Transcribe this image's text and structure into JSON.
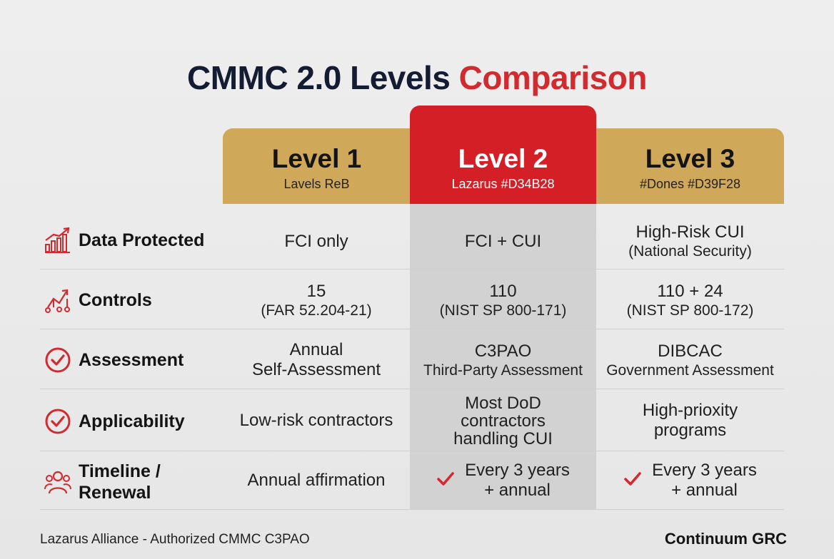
{
  "title": {
    "part1": "CMMC 2.0 Levels",
    "part2": "Comparison"
  },
  "colors": {
    "gold": "#d0a85a",
    "red": "#d31f25",
    "navy": "#141c33"
  },
  "levels": [
    {
      "title": "Level 1",
      "subtitle": "Lavels ReB"
    },
    {
      "title": "Level 2",
      "subtitle": "Lazarus #D34B28"
    },
    {
      "title": "Level 3",
      "subtitle": "#Dones #D39F28"
    }
  ],
  "rows": [
    {
      "label": "Data Protected",
      "icon": "growth-chart-icon",
      "cells": [
        {
          "lines": [
            "FCI only"
          ]
        },
        {
          "lines": [
            "FCI + CUI"
          ]
        },
        {
          "lines": [
            "High-Risk CUI",
            "(National Security)"
          ]
        }
      ]
    },
    {
      "label": "Controls",
      "icon": "analytics-icon",
      "cells": [
        {
          "lines": [
            "15",
            "(FAR 52.204-21)"
          ]
        },
        {
          "lines": [
            "110",
            "(NIST SP 800-171)"
          ]
        },
        {
          "lines": [
            "110 + 24",
            "(NIST SP 800-172)"
          ]
        }
      ]
    },
    {
      "label": "Assessment",
      "icon": "check-circle-icon",
      "cells": [
        {
          "lines": [
            "Annual",
            "Self-Assessment"
          ]
        },
        {
          "lines": [
            "C3PAO",
            "Third-Party Assessment"
          ]
        },
        {
          "lines": [
            "DIBCAC",
            "Government Assessment"
          ]
        }
      ]
    },
    {
      "label": "Applicability",
      "icon": "check-circle-icon",
      "cells": [
        {
          "lines": [
            "Low-risk contractors"
          ]
        },
        {
          "lines": [
            "Most DoD",
            "contractors",
            "handling CUI"
          ]
        },
        {
          "lines": [
            "High-prioxity",
            "programs"
          ]
        }
      ]
    },
    {
      "label_line1": "Timeline /",
      "label_line2": "Renewal",
      "icon": "team-icon",
      "cells": [
        {
          "lines": [
            "Annual affirmation"
          ]
        },
        {
          "lines": [
            "Every 3 years",
            "+ annual"
          ],
          "check": "checkmark-icon"
        },
        {
          "lines": [
            "Every 3 years",
            "+ annual"
          ],
          "check": "checkmark-icon"
        }
      ]
    }
  ],
  "footer": {
    "left": "Lazarus Alliance - Authorized CMMC C3PAO",
    "right": "Continuum GRC"
  }
}
